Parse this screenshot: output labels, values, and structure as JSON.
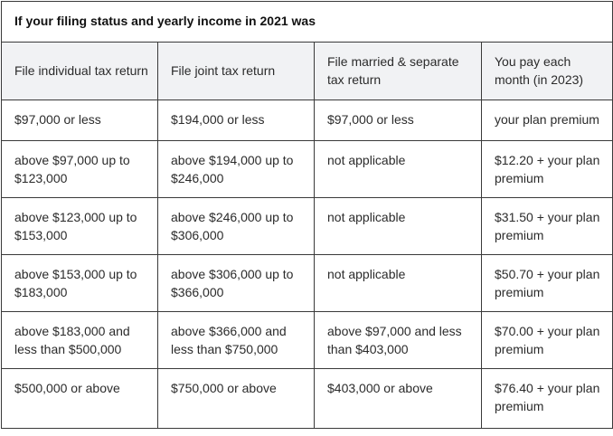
{
  "table": {
    "title": "If your filing status and yearly income in 2021 was",
    "headers": [
      "File individual tax return",
      "File joint tax return",
      "File married & separate tax return",
      "You pay each month (in 2023)"
    ],
    "rows": [
      [
        "$97,000 or less",
        "$194,000 or less",
        "$97,000 or less",
        "your plan premium"
      ],
      [
        "above $97,000 up to $123,000",
        "above $194,000 up to $246,000",
        "not applicable",
        "$12.20 + your plan premium"
      ],
      [
        "above $123,000 up to $153,000",
        "above $246,000 up to $306,000",
        "not applicable",
        "$31.50 + your plan premium"
      ],
      [
        "above $153,000 up to $183,000",
        "above $306,000 up to $366,000",
        "not applicable",
        "$50.70 + your plan premium"
      ],
      [
        "above $183,000 and less than $500,000",
        "above $366,000 and less than $750,000",
        "above $97,000 and less than $403,000",
        "$70.00 + your plan premium"
      ],
      [
        "$500,000 or above",
        "$750,000 or above",
        "$403,000 or above",
        "$76.40 + your plan premium"
      ]
    ]
  }
}
